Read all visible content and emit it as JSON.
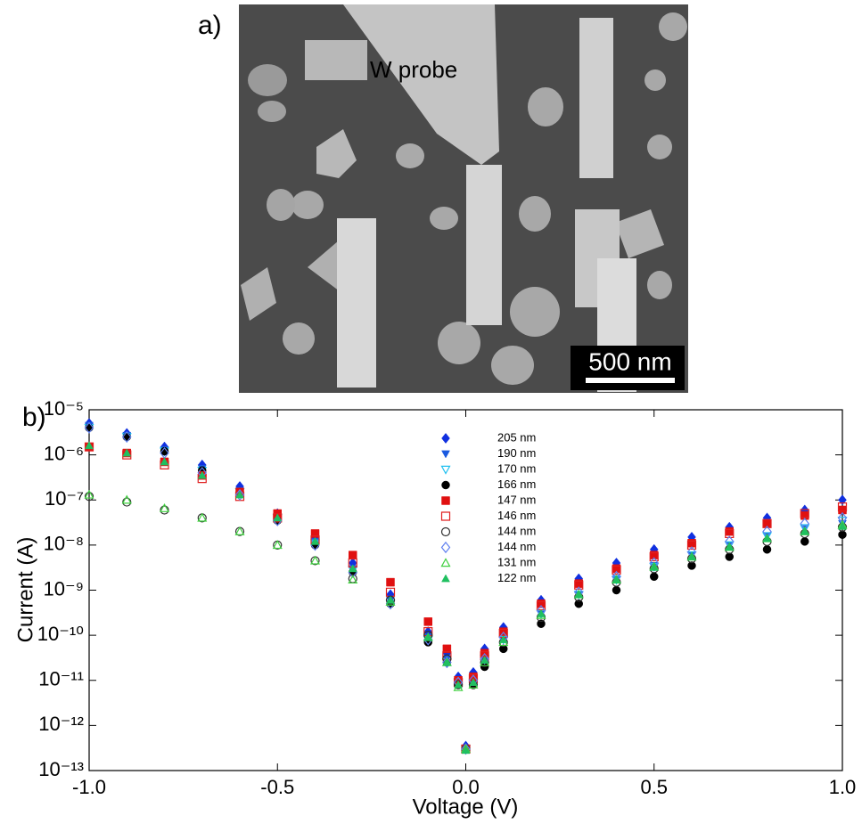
{
  "panel_a": {
    "label": "a)",
    "probe_label": "W probe",
    "scale_bar": "500 nm"
  },
  "chart_data": {
    "type": "scatter",
    "panel_label": "b)",
    "x_label": "Voltage (V)",
    "y_label": "Current (A)",
    "log_y": true,
    "grid": false,
    "xlim": [
      -1.0,
      1.0
    ],
    "xticks": [
      {
        "value": -1.0,
        "label": "-1.0"
      },
      {
        "value": -0.5,
        "label": "-0.5"
      },
      {
        "value": 0,
        "label": "0.0"
      },
      {
        "value": 0.5,
        "label": "0.5"
      },
      {
        "value": 1.0,
        "label": "1.0"
      }
    ],
    "ylim": [
      1e-13,
      1e-05
    ],
    "yticks": [
      {
        "value": 1e-13,
        "label": "10⁻¹³"
      },
      {
        "value": 1e-12,
        "label": "10⁻¹²"
      },
      {
        "value": 1e-11,
        "label": "10⁻¹¹"
      },
      {
        "value": 1e-10,
        "label": "10⁻¹⁰"
      },
      {
        "value": 1e-09,
        "label": "10⁻⁹"
      },
      {
        "value": 1e-08,
        "label": "10⁻⁸"
      },
      {
        "value": 1e-07,
        "label": "10⁻⁷"
      },
      {
        "value": 1e-06,
        "label": "10⁻⁶"
      },
      {
        "value": 1e-05,
        "label": "10⁻⁵"
      }
    ],
    "x": [
      -1.0,
      -0.9,
      -0.8,
      -0.7,
      -0.6,
      -0.5,
      -0.4,
      -0.3,
      -0.2,
      -0.1,
      -0.05,
      -0.02,
      0,
      0.02,
      0.05,
      0.1,
      0.2,
      0.3,
      0.4,
      0.5,
      0.6,
      0.7,
      0.8,
      0.9,
      1.0
    ],
    "series": [
      {
        "name": "205 nm",
        "color": "#1030e0",
        "marker": "diamond",
        "values": [
          5e-06,
          3e-06,
          1.5e-06,
          6e-07,
          2e-07,
          5e-08,
          1.5e-08,
          4e-09,
          8e-10,
          1.2e-10,
          4e-11,
          1.2e-11,
          3.5e-13,
          1.5e-11,
          5e-11,
          1.5e-10,
          6e-10,
          1.8e-09,
          4e-09,
          8e-09,
          1.5e-08,
          2.5e-08,
          4e-08,
          6e-08,
          1e-07
        ]
      },
      {
        "name": "190 nm",
        "color": "#1a5ae0",
        "marker": "triangle-down",
        "values": [
          4.5e-06,
          2.7e-06,
          1.3e-06,
          5e-07,
          1.6e-07,
          4e-08,
          1.2e-08,
          3e-09,
          6e-10,
          9e-11,
          3e-11,
          1e-11,
          3e-13,
          1e-11,
          3e-11,
          8e-11,
          3e-10,
          8e-10,
          1.8e-09,
          3.5e-09,
          6e-09,
          1e-08,
          1.6e-08,
          2.3e-08,
          3e-08
        ]
      },
      {
        "name": "170 nm",
        "color": "#20c0f0",
        "marker": "triangle-down-open",
        "values": [
          4e-06,
          2.5e-06,
          1.2e-06,
          4.5e-07,
          1.5e-07,
          4e-08,
          1.1e-08,
          2.8e-09,
          5e-10,
          8e-11,
          2.5e-11,
          9e-12,
          3e-13,
          9e-12,
          3e-11,
          8e-11,
          3e-10,
          8e-10,
          1.7e-09,
          3.3e-09,
          6e-09,
          1e-08,
          1.6e-08,
          2.4e-08,
          3.5e-08
        ]
      },
      {
        "name": "166 nm",
        "color": "#000000",
        "marker": "circle",
        "values": [
          4e-06,
          2.5e-06,
          1.2e-06,
          4.5e-07,
          1.5e-07,
          3.5e-08,
          1e-08,
          2.5e-09,
          5e-10,
          7e-11,
          2.5e-11,
          8e-12,
          3e-13,
          8e-12,
          2e-11,
          5e-11,
          1.8e-10,
          5e-10,
          1e-09,
          2e-09,
          3.5e-09,
          5.5e-09,
          8e-09,
          1.2e-08,
          1.7e-08
        ]
      },
      {
        "name": "147 nm",
        "color": "#e01010",
        "marker": "square",
        "values": [
          1.5e-06,
          1.1e-06,
          7e-07,
          3.5e-07,
          1.5e-07,
          5e-08,
          1.8e-08,
          6e-09,
          1.5e-09,
          2e-10,
          5e-11,
          1e-11,
          3e-13,
          1.2e-11,
          4e-11,
          1.2e-10,
          5e-10,
          1.4e-09,
          3e-09,
          6e-09,
          1.1e-08,
          2e-08,
          3e-08,
          4.5e-08,
          6e-08
        ]
      },
      {
        "name": "146 nm",
        "color": "#e02020",
        "marker": "square-open",
        "values": [
          1.5e-06,
          1e-06,
          6e-07,
          3e-07,
          1.2e-07,
          4e-08,
          1.3e-08,
          4e-09,
          9e-10,
          1.2e-10,
          3.5e-11,
          9e-12,
          3e-13,
          1.1e-11,
          3.5e-11,
          1.1e-10,
          4.5e-10,
          1.3e-09,
          2.8e-09,
          5.5e-09,
          1e-08,
          1.8e-08,
          3e-08,
          5e-08,
          7e-08
        ]
      },
      {
        "name": "144 nm",
        "color": "#303030",
        "marker": "circle-open",
        "values": [
          1.2e-07,
          9e-08,
          6e-08,
          4e-08,
          2e-08,
          1e-08,
          4.5e-09,
          1.8e-09,
          6e-10,
          1e-10,
          3e-11,
          8e-12,
          3e-13,
          8e-12,
          2.5e-11,
          7e-11,
          2.5e-10,
          7e-10,
          1.5e-09,
          3e-09,
          5e-09,
          8e-09,
          1.2e-08,
          1.8e-08,
          2.5e-08
        ]
      },
      {
        "name": "144 nm",
        "color": "#6080f0",
        "marker": "diamond-open",
        "values": [
          4e-06,
          2.5e-06,
          1.1e-06,
          4e-07,
          1.3e-07,
          3.5e-08,
          1e-08,
          2.5e-09,
          5e-10,
          8e-11,
          2.5e-11,
          9e-12,
          3e-13,
          1e-11,
          3e-11,
          9e-11,
          3.5e-10,
          9e-10,
          2e-09,
          4e-09,
          7e-09,
          1.2e-08,
          2e-08,
          3e-08,
          4e-08
        ]
      },
      {
        "name": "131 nm",
        "color": "#40d040",
        "marker": "triangle-up-open",
        "values": [
          1.3e-07,
          1e-07,
          6.5e-08,
          4e-08,
          2e-08,
          1e-08,
          4.5e-09,
          1.7e-09,
          5.5e-10,
          9e-11,
          2.5e-11,
          7e-12,
          3e-13,
          8e-12,
          2.5e-11,
          7e-11,
          2.8e-10,
          8e-10,
          1.7e-09,
          3.3e-09,
          5.5e-09,
          9e-09,
          1.4e-08,
          2e-08,
          2.8e-08
        ]
      },
      {
        "name": "122 nm",
        "color": "#20c060",
        "marker": "triangle-up",
        "values": [
          1.6e-06,
          1.1e-06,
          7e-07,
          3.5e-07,
          1.3e-07,
          4e-08,
          1.2e-08,
          3e-09,
          6e-10,
          9e-11,
          2.5e-11,
          8e-12,
          2.8e-13,
          9e-12,
          2.8e-11,
          8e-11,
          3e-10,
          8e-10,
          1.7e-09,
          3.2e-09,
          5.5e-09,
          9e-09,
          1.4e-08,
          2e-08,
          2.6e-08
        ]
      }
    ]
  }
}
